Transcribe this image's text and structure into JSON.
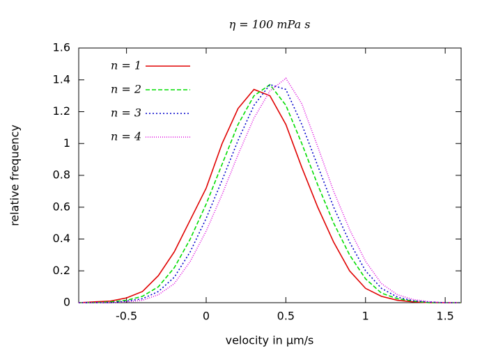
{
  "chart_data": {
    "type": "line",
    "title": "η = 100 mPa s",
    "xlabel": "velocity in μm/s",
    "ylabel": "relative frequency",
    "x": [
      -0.8,
      -0.7,
      -0.6,
      -0.5,
      -0.4,
      -0.3,
      -0.2,
      -0.1,
      0,
      0.1,
      0.2,
      0.3,
      0.4,
      0.5,
      0.6,
      0.7,
      0.8,
      0.9,
      1.0,
      1.1,
      1.2,
      1.3,
      1.4,
      1.5,
      1.6
    ],
    "series": [
      {
        "name": "n = 1",
        "color": "#e00000",
        "style": "solid",
        "values": [
          0,
          0.005,
          0.01,
          0.03,
          0.07,
          0.17,
          0.32,
          0.52,
          0.72,
          1.0,
          1.22,
          1.34,
          1.3,
          1.12,
          0.85,
          0.6,
          0.38,
          0.2,
          0.09,
          0.04,
          0.015,
          0.005,
          0,
          0,
          0
        ]
      },
      {
        "name": "n = 2",
        "color": "#00dd00",
        "style": "dashed",
        "values": [
          0,
          0,
          0.005,
          0.015,
          0.04,
          0.1,
          0.22,
          0.4,
          0.62,
          0.87,
          1.12,
          1.3,
          1.37,
          1.24,
          1.0,
          0.74,
          0.5,
          0.3,
          0.15,
          0.06,
          0.025,
          0.01,
          0,
          0,
          0
        ]
      },
      {
        "name": "n = 3",
        "color": "#0000cc",
        "style": "dotted",
        "values": [
          0,
          0,
          0,
          0.01,
          0.025,
          0.07,
          0.16,
          0.32,
          0.53,
          0.77,
          1.02,
          1.24,
          1.37,
          1.34,
          1.12,
          0.86,
          0.6,
          0.38,
          0.2,
          0.09,
          0.035,
          0.012,
          0.004,
          0,
          0
        ]
      },
      {
        "name": "n = 4",
        "color": "#dd00dd",
        "style": "finedotted",
        "values": [
          0,
          0,
          0,
          0.005,
          0.015,
          0.05,
          0.12,
          0.26,
          0.45,
          0.68,
          0.93,
          1.16,
          1.33,
          1.41,
          1.25,
          0.98,
          0.7,
          0.46,
          0.26,
          0.12,
          0.05,
          0.02,
          0.006,
          0,
          0
        ]
      }
    ],
    "xlim": [
      -0.8,
      1.6
    ],
    "xticks": [
      -0.5,
      0,
      0.5,
      1,
      1.5
    ],
    "ylim": [
      0,
      1.6
    ],
    "yticks": [
      0,
      0.2,
      0.4,
      0.6,
      0.8,
      1,
      1.2,
      1.4,
      1.6
    ],
    "legend": "upper left",
    "grid": false
  }
}
